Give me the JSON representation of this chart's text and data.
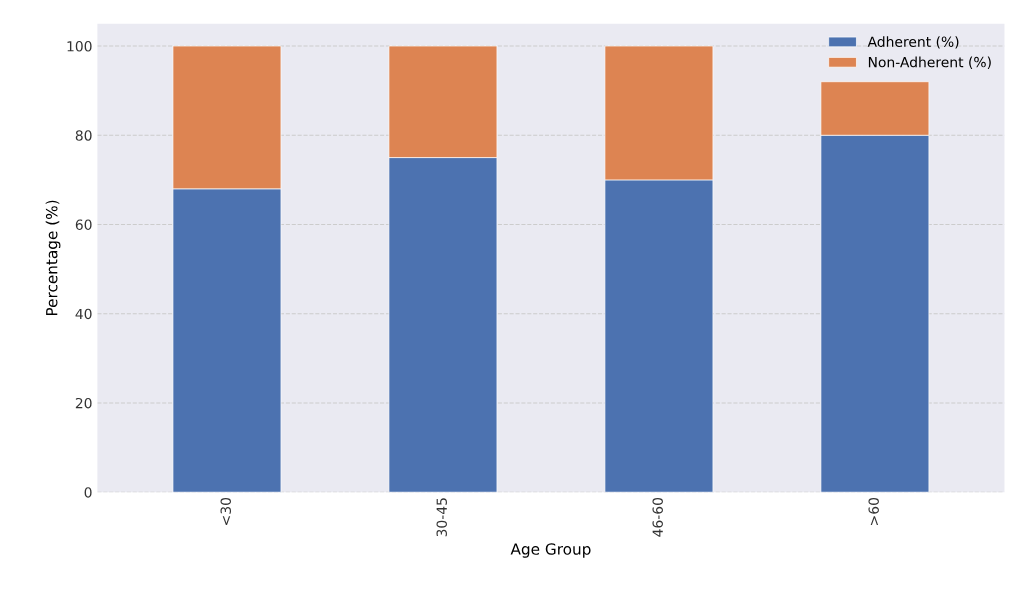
{
  "chart_data": {
    "type": "bar",
    "stacked": true,
    "xlabel": "Age Group",
    "ylabel": "Percentage (%)",
    "categories": [
      "<30",
      "30-45",
      "46-60",
      ">60"
    ],
    "series": [
      {
        "name": "Adherent (%)",
        "color": "#4c72b0",
        "values": [
          68,
          75,
          70,
          80
        ]
      },
      {
        "name": "Non-Adherent (%)",
        "color": "#dd8452",
        "values": [
          32,
          25,
          30,
          12
        ]
      }
    ],
    "ylim": [
      0,
      105
    ],
    "yticks": [
      0,
      20,
      40,
      60,
      80,
      100
    ],
    "grid": "y",
    "legend": "top right"
  }
}
